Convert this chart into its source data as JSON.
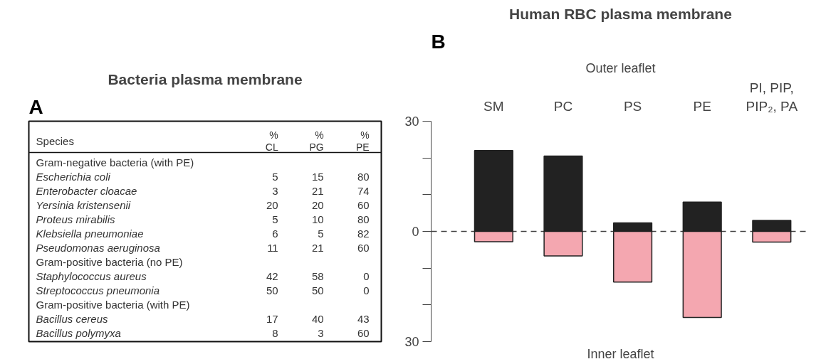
{
  "chart_data": [
    {
      "type": "heatmap",
      "title": "Bacteria plasma membrane",
      "ylabel": "Species",
      "annotations": [
        "A"
      ],
      "categories": [
        "%\nCL",
        "%\nPG",
        "%\nPE"
      ],
      "y_categories": [
        "Gram-negative bacteria (with PE)",
        "Escherichia coli",
        "Enterobacter cloacae",
        "Yersinia kristensenii",
        "Proteus mirabilis",
        "Klebsiella pneumoniae",
        "Pseudomonas aeruginosa",
        "Gram-positive bacteria (no PE)",
        "Staphylococcus aureus",
        "Streptococcus pneumonia",
        "Gram-positive bacteria (with PE)",
        "Bacillus cereus",
        "Bacillus polymyxa"
      ],
      "cells": [
        [
          null,
          null,
          null
        ],
        [
          5,
          15,
          80
        ],
        [
          3,
          21,
          74
        ],
        [
          20,
          20,
          60
        ],
        [
          5,
          10,
          80
        ],
        [
          6,
          5,
          82
        ],
        [
          11,
          21,
          60
        ],
        [
          null,
          null,
          null
        ],
        [
          42,
          58,
          0
        ],
        [
          50,
          50,
          0
        ],
        [
          null,
          null,
          null
        ],
        [
          17,
          40,
          43
        ],
        [
          8,
          3,
          60
        ]
      ],
      "data_labels": true
    },
    {
      "type": "bar",
      "title": "Human RBC plasma membrane",
      "annotations": [
        "B",
        "Outer leaflet",
        "Inner leaflet"
      ],
      "categories": [
        "SM",
        "PC",
        "PS",
        "PE",
        "PI, PIP,\nPIP₂, PA"
      ],
      "stacked": true,
      "series": [
        {
          "color": "#222222",
          "values": [
            22,
            20.5,
            2.3,
            8,
            3
          ]
        },
        {
          "color": "#f4a7b0",
          "values": [
            -2.8,
            -6.7,
            -13.8,
            -23.4,
            -2.9
          ]
        }
      ],
      "ylim": [
        -30,
        30
      ],
      "yticks": [
        {
          "value": -30,
          "label": "30"
        },
        {
          "value": -20,
          "label": null
        },
        {
          "value": -10,
          "label": null
        },
        0,
        {
          "value": 10,
          "label": null
        },
        {
          "value": 20,
          "label": null
        },
        30
      ],
      "ref_lines": [
        {
          "axis": "y",
          "value": 0,
          "line_style": "dashed"
        }
      ],
      "grid": false
    }
  ]
}
